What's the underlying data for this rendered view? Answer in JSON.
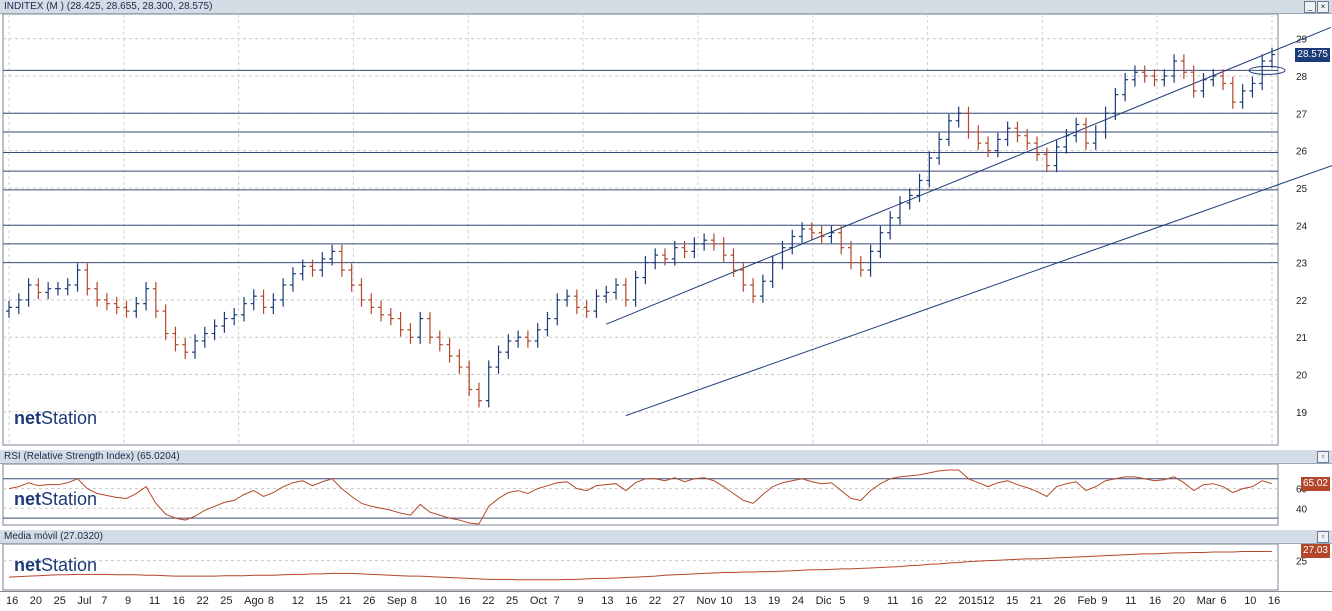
{
  "panels": {
    "price": {
      "title": "INDITEX (M ) (28.425, 28.655, 28.300, 28.575)",
      "last_label": "28.575",
      "last_color": "#1c3a78"
    },
    "rsi": {
      "title": "RSI (Relative Strength Index) (65.0204)",
      "last_label": "65.02",
      "last_color": "#b4472a"
    },
    "ma": {
      "title": "Media móvil (27.0320)",
      "last_label": "27.03",
      "last_color": "#b4472a"
    }
  },
  "logo": {
    "prefix": "net",
    "suffix": "Station"
  },
  "window_buttons": {
    "minimize": "_",
    "restore": "▫",
    "close": "×"
  },
  "x_labels": [
    "16",
    "20",
    "25",
    "Jul",
    "7",
    "9",
    "11",
    "16",
    "22",
    "25",
    "Ago",
    "8",
    "12",
    "15",
    "21",
    "26",
    "Sep",
    "8",
    "10",
    "16",
    "22",
    "25",
    "Oct",
    "7",
    "9",
    "13",
    "16",
    "22",
    "27",
    "Nov",
    "10",
    "13",
    "19",
    "24",
    "Dic",
    "5",
    "9",
    "11",
    "16",
    "22",
    "2015",
    "12",
    "15",
    "21",
    "26",
    "Feb",
    "9",
    "11",
    "16",
    "20",
    "Mar",
    "6",
    "10",
    "16"
  ],
  "chart_data": [
    {
      "type": "bar",
      "subtype": "ohlc",
      "title": "INDITEX (M ) (28.425, 28.655, 28.300, 28.575)",
      "ylim": [
        18.3,
        29.5
      ],
      "yticks": [
        19,
        20,
        21,
        22,
        23,
        24,
        25,
        26,
        27,
        28,
        29
      ],
      "last_value": 28.575,
      "up_color": "#1c3a78",
      "down_color": "#b4472a",
      "grid": true,
      "closes": [
        21.8,
        22.0,
        22.4,
        22.2,
        22.3,
        22.3,
        22.4,
        22.8,
        22.3,
        22.0,
        21.9,
        21.8,
        21.7,
        21.9,
        22.3,
        21.7,
        21.1,
        20.8,
        20.6,
        20.9,
        21.1,
        21.3,
        21.5,
        21.6,
        21.9,
        22.1,
        21.8,
        22.0,
        22.4,
        22.7,
        22.9,
        22.8,
        23.1,
        23.3,
        22.8,
        22.4,
        22.0,
        21.8,
        21.6,
        21.5,
        21.2,
        21.0,
        21.5,
        21.0,
        20.8,
        20.5,
        20.2,
        19.6,
        19.3,
        20.2,
        20.6,
        20.9,
        21.0,
        20.9,
        21.2,
        21.5,
        22.0,
        22.1,
        21.8,
        21.7,
        22.1,
        22.2,
        22.4,
        22.0,
        22.6,
        23.0,
        23.2,
        23.1,
        23.4,
        23.3,
        23.5,
        23.6,
        23.5,
        23.2,
        22.8,
        22.4,
        22.1,
        22.5,
        23.0,
        23.4,
        23.7,
        23.9,
        23.8,
        23.7,
        23.8,
        23.4,
        23.0,
        22.8,
        23.3,
        23.8,
        24.2,
        24.6,
        24.8,
        25.2,
        25.8,
        26.3,
        26.8,
        27.0,
        26.5,
        26.2,
        26.0,
        26.3,
        26.6,
        26.4,
        26.2,
        25.9,
        25.6,
        26.1,
        26.4,
        26.7,
        26.2,
        26.5,
        27.0,
        27.5,
        27.9,
        28.1,
        28.0,
        27.9,
        28.0,
        28.4,
        28.1,
        27.6,
        27.9,
        28.0,
        27.8,
        27.3,
        27.6,
        27.8,
        28.4,
        28.575
      ]
    },
    {
      "type": "line",
      "title": "RSI (Relative Strength Index) (65.0204)",
      "ylim": [
        25,
        82
      ],
      "yticks": [
        40,
        60
      ],
      "last_value": 65.0204,
      "color": "#b4472a",
      "values": [
        60,
        62,
        66,
        63,
        64,
        64,
        66,
        70,
        60,
        55,
        53,
        51,
        50,
        55,
        62,
        45,
        34,
        30,
        28,
        32,
        38,
        42,
        46,
        48,
        54,
        58,
        52,
        56,
        62,
        66,
        68,
        63,
        67,
        70,
        60,
        52,
        45,
        42,
        40,
        38,
        35,
        33,
        44,
        36,
        33,
        30,
        28,
        25,
        24,
        42,
        50,
        56,
        58,
        55,
        60,
        63,
        66,
        67,
        60,
        58,
        63,
        64,
        65,
        58,
        66,
        70,
        70,
        68,
        71,
        67,
        70,
        71,
        68,
        62,
        55,
        48,
        45,
        54,
        62,
        66,
        68,
        70,
        67,
        65,
        66,
        58,
        50,
        48,
        58,
        65,
        70,
        72,
        73,
        74,
        76,
        78,
        79,
        79,
        70,
        66,
        62,
        66,
        68,
        64,
        61,
        57,
        52,
        62,
        65,
        67,
        58,
        62,
        68,
        70,
        72,
        72,
        70,
        68,
        69,
        72,
        66,
        58,
        64,
        65,
        62,
        56,
        60,
        62,
        68,
        65.02
      ]
    },
    {
      "type": "line",
      "title": "Media móvil (27.0320)",
      "ylim": [
        19,
        28
      ],
      "yticks": [
        25
      ],
      "last_value": 27.032,
      "color": "#b4472a",
      "values": [
        21.4,
        21.5,
        21.6,
        21.7,
        21.8,
        21.9,
        21.9,
        22.0,
        22.0,
        22.0,
        22.0,
        21.9,
        21.9,
        21.9,
        21.8,
        21.8,
        21.7,
        21.6,
        21.6,
        21.6,
        21.6,
        21.6,
        21.7,
        21.7,
        21.7,
        21.8,
        21.8,
        21.8,
        21.9,
        22.0,
        22.0,
        22.1,
        22.1,
        22.2,
        22.2,
        22.2,
        22.1,
        22.0,
        21.9,
        21.8,
        21.7,
        21.6,
        21.6,
        21.5,
        21.4,
        21.3,
        21.2,
        21.1,
        21.0,
        20.9,
        20.9,
        20.9,
        20.8,
        20.8,
        20.8,
        20.8,
        20.8,
        20.9,
        20.9,
        21.0,
        21.1,
        21.1,
        21.2,
        21.3,
        21.4,
        21.5,
        21.6,
        21.8,
        21.9,
        22.0,
        22.1,
        22.2,
        22.3,
        22.4,
        22.4,
        22.5,
        22.5,
        22.6,
        22.6,
        22.7,
        22.8,
        22.9,
        23.0,
        23.0,
        23.1,
        23.2,
        23.2,
        23.3,
        23.4,
        23.5,
        23.6,
        23.7,
        23.9,
        24.0,
        24.2,
        24.3,
        24.5,
        24.6,
        24.8,
        24.9,
        25.0,
        25.1,
        25.2,
        25.3,
        25.4,
        25.4,
        25.5,
        25.6,
        25.7,
        25.8,
        25.9,
        26.0,
        26.1,
        26.2,
        26.3,
        26.4,
        26.5,
        26.5,
        26.6,
        26.7,
        26.7,
        26.8,
        26.8,
        26.9,
        26.9,
        26.9,
        27.0,
        27.0,
        27.0,
        27.032
      ]
    }
  ]
}
